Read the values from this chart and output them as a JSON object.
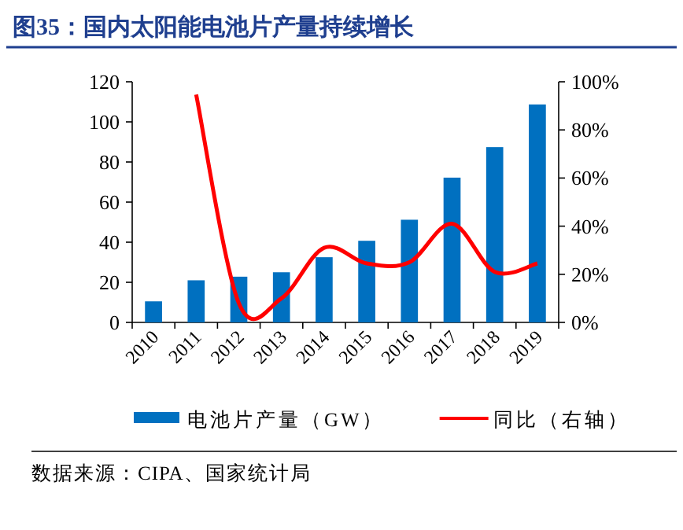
{
  "chart_data": {
    "type": "bar",
    "title": "图35：国内太阳能电池片产量持续增长",
    "categories": [
      "2010",
      "2011",
      "2012",
      "2013",
      "2014",
      "2015",
      "2016",
      "2017",
      "2018",
      "2019"
    ],
    "series": [
      {
        "name": "电池片产量（GW）",
        "color": "#0070c0",
        "values": [
          10.5,
          21,
          22.8,
          25,
          32.5,
          40.7,
          51.2,
          72.2,
          87.4,
          108.7
        ]
      },
      {
        "name": "同比（右轴）",
        "type": "line",
        "axis": "y2",
        "color": "#ff0000",
        "values": [
          null,
          94.7,
          8,
          10,
          31,
          24.5,
          25,
          41,
          21,
          24.5
        ]
      }
    ],
    "ylim": [
      0,
      120
    ],
    "yticks": [
      0,
      20,
      40,
      60,
      80,
      100,
      120
    ],
    "y2lim": [
      0,
      100
    ],
    "y2ticks": [
      {
        "value": 0,
        "label": "0%"
      },
      {
        "value": 20,
        "label": "20%"
      },
      {
        "value": 40,
        "label": "40%"
      },
      {
        "value": 60,
        "label": "60%"
      },
      {
        "value": 80,
        "label": "80%"
      },
      {
        "value": 100,
        "label": "100%"
      }
    ],
    "legend": "bottom",
    "annotations": [
      "数据来源：CIPA、国家统计局"
    ]
  }
}
